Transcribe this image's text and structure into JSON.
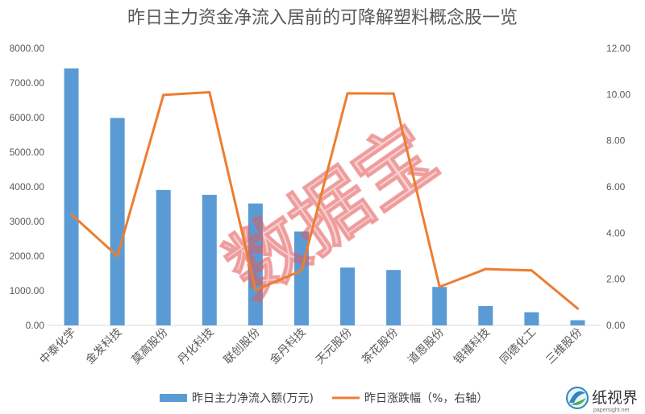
{
  "chart_data": {
    "type": "bar",
    "title": "昨日主力资金净流入居前的可降解塑料概念股一览",
    "categories": [
      "中泰化学",
      "金发科技",
      "莫高股份",
      "丹化科技",
      "联创股份",
      "金丹科技",
      "天元股份",
      "茶花股份",
      "道恩股份",
      "银禧科技",
      "同德化工",
      "三维股份"
    ],
    "series": [
      {
        "name": "昨日主力净流入额(万元)",
        "type": "bar",
        "axis": "left",
        "color": "#5B9BD5",
        "values": [
          7420,
          5990,
          3910,
          3770,
          3520,
          2710,
          1670,
          1600,
          1110,
          560,
          380,
          150
        ]
      },
      {
        "name": "昨日涨跌幅（%，右轴）",
        "type": "line",
        "axis": "right",
        "color": "#ED7D31",
        "values": [
          4.81,
          3.0,
          9.98,
          10.1,
          1.53,
          2.37,
          10.05,
          10.04,
          1.67,
          2.44,
          2.38,
          0.73
        ]
      }
    ],
    "y_left": {
      "range": [
        0,
        8000
      ],
      "ticks": [
        0,
        1000,
        2000,
        3000,
        4000,
        5000,
        6000,
        7000,
        8000
      ],
      "tick_labels": [
        "0.00",
        "1000.00",
        "2000.00",
        "3000.00",
        "4000.00",
        "5000.00",
        "6000.00",
        "7000.00",
        "8000.00"
      ]
    },
    "y_right": {
      "range": [
        0,
        12
      ],
      "ticks": [
        0,
        2,
        4,
        6,
        8,
        10,
        12
      ],
      "tick_labels": [
        "0.00",
        "2.00",
        "4.00",
        "6.00",
        "8.00",
        "10.00",
        "12.00"
      ]
    },
    "grid": false,
    "legend": "bottom"
  },
  "watermark": "数据宝",
  "logo": {
    "name": "纸视界",
    "url": "papersight.net",
    "icon": "logo-swirl-icon"
  }
}
